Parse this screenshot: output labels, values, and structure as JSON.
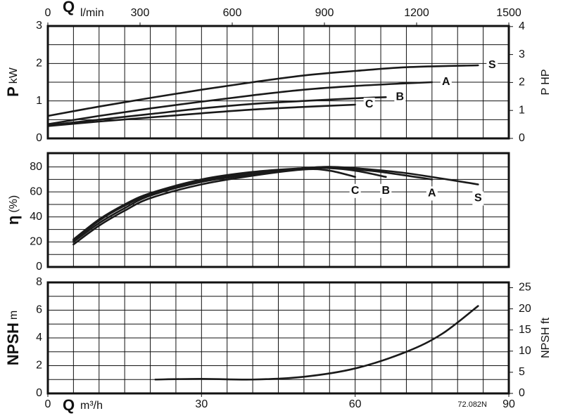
{
  "chart_data": [
    {
      "type": "line",
      "ylabel_symbol": "P",
      "ylabel": "kW",
      "y2label": "P HP",
      "x2label_symbol": "Q",
      "x2label": "l/min",
      "x2lim": [
        0,
        1500
      ],
      "x2ticks": [
        0,
        300,
        600,
        900,
        1200,
        1500
      ],
      "xlim": [
        0,
        90
      ],
      "ylim": [
        0,
        3
      ],
      "yticks": [
        0,
        1,
        2,
        3
      ],
      "y2lim": [
        0,
        4.02
      ],
      "y2ticks": [
        0,
        1,
        2,
        3,
        4
      ],
      "grid": true,
      "xgrid": [
        5,
        10,
        15,
        20,
        25,
        30,
        35,
        40,
        45,
        50,
        55,
        60,
        65,
        70,
        75,
        80,
        85
      ],
      "ygrid": [
        0.5,
        1.5,
        2.5
      ],
      "series_label": "end-right",
      "series": [
        {
          "name": "S",
          "color": "#1a1a1a",
          "x": [
            0,
            10,
            20,
            30,
            40,
            50,
            60,
            70,
            84
          ],
          "values": [
            0.6,
            0.85,
            1.08,
            1.3,
            1.5,
            1.68,
            1.8,
            1.9,
            1.95
          ]
        },
        {
          "name": "A",
          "color": "#1a1a1a",
          "x": [
            0,
            10,
            20,
            30,
            40,
            50,
            60,
            70,
            75
          ],
          "values": [
            0.38,
            0.6,
            0.8,
            0.98,
            1.15,
            1.3,
            1.4,
            1.47,
            1.5
          ]
        },
        {
          "name": "B",
          "color": "#1a1a1a",
          "x": [
            0,
            10,
            20,
            30,
            40,
            50,
            60,
            66
          ],
          "values": [
            0.35,
            0.5,
            0.65,
            0.8,
            0.92,
            1.0,
            1.07,
            1.1
          ]
        },
        {
          "name": "C",
          "color": "#1a1a1a",
          "x": [
            0,
            10,
            20,
            30,
            40,
            50,
            60
          ],
          "values": [
            0.33,
            0.45,
            0.56,
            0.67,
            0.77,
            0.84,
            0.9
          ]
        }
      ]
    },
    {
      "type": "line",
      "ylabel_symbol": "η",
      "ylabel": "(%)",
      "xlim": [
        0,
        90
      ],
      "ylim": [
        0,
        91
      ],
      "yticks": [
        0,
        20,
        40,
        60,
        80
      ],
      "grid": true,
      "xgrid": [
        5,
        10,
        15,
        20,
        25,
        30,
        35,
        40,
        45,
        50,
        55,
        60,
        65,
        70,
        75,
        80,
        85
      ],
      "ygrid": [
        10,
        30,
        50,
        70
      ],
      "series_label": "end-below",
      "series": [
        {
          "name": "S",
          "color": "#1a1a1a",
          "x": [
            5,
            10,
            15,
            20,
            30,
            40,
            50,
            55,
            60,
            70,
            84
          ],
          "values": [
            22,
            38,
            50,
            59,
            70,
            76,
            79,
            80,
            79,
            75,
            66
          ]
        },
        {
          "name": "A",
          "color": "#1a1a1a",
          "x": [
            5,
            10,
            15,
            20,
            30,
            40,
            50,
            55,
            60,
            65,
            75
          ],
          "values": [
            21,
            37,
            49,
            58,
            69,
            75,
            79,
            80,
            78,
            76,
            70
          ]
        },
        {
          "name": "B",
          "color": "#1a1a1a",
          "x": [
            5,
            10,
            15,
            20,
            30,
            40,
            50,
            55,
            60,
            66
          ],
          "values": [
            20,
            35,
            47,
            57,
            68,
            74,
            79,
            79,
            77,
            72
          ]
        },
        {
          "name": "C",
          "color": "#1a1a1a",
          "x": [
            5,
            10,
            15,
            20,
            30,
            40,
            50,
            55,
            60
          ],
          "values": [
            18,
            33,
            45,
            55,
            66,
            73,
            78,
            77,
            72
          ]
        }
      ]
    },
    {
      "type": "line",
      "ylabel_symbol": "NPSH",
      "ylabel": "m",
      "y2label": "NPSH ft",
      "xlabel_symbol": "Q",
      "xlabel": "m³/h",
      "annotation": "72.082N",
      "xlim": [
        0,
        90
      ],
      "xticks": [
        0,
        30,
        60,
        90
      ],
      "ylim": [
        0,
        8
      ],
      "yticks": [
        0,
        2,
        4,
        6,
        8
      ],
      "y2lim": [
        0,
        26.25
      ],
      "y2ticks": [
        0,
        5,
        10,
        15,
        20,
        25
      ],
      "grid": true,
      "xgrid": [
        5,
        10,
        15,
        20,
        25,
        30,
        35,
        40,
        45,
        50,
        55,
        60,
        65,
        70,
        75,
        80,
        85
      ],
      "ygrid": [
        1,
        3,
        5,
        7
      ],
      "series": [
        {
          "color": "#1a1a1a",
          "x": [
            21,
            30,
            40,
            50,
            60,
            70,
            77,
            84
          ],
          "values": [
            1.0,
            1.05,
            1.0,
            1.2,
            1.8,
            3.0,
            4.3,
            6.3
          ]
        }
      ]
    }
  ]
}
